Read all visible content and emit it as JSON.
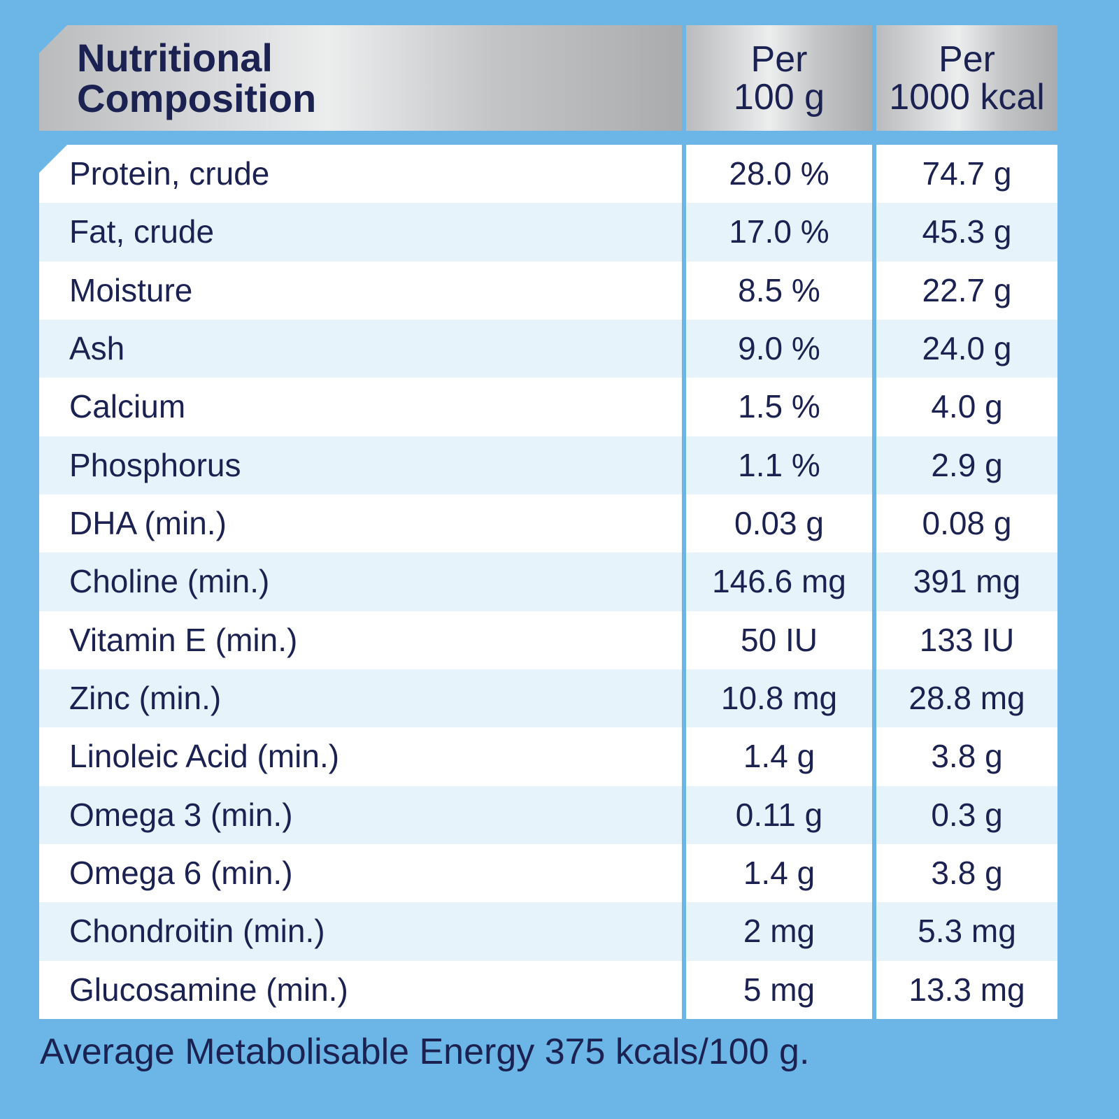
{
  "header": {
    "title_line1": "Nutritional",
    "title_line2": "Composition",
    "col2_line1": "Per",
    "col2_line2": "100 g",
    "col3_line1": "Per",
    "col3_line2": "1000 kcal"
  },
  "rows": [
    {
      "name": "Protein, crude",
      "per100g": "28.0 %",
      "per1000kcal": "74.7 g"
    },
    {
      "name": "Fat, crude",
      "per100g": "17.0 %",
      "per1000kcal": "45.3 g"
    },
    {
      "name": "Moisture",
      "per100g": "8.5 %",
      "per1000kcal": "22.7 g"
    },
    {
      "name": "Ash",
      "per100g": "9.0 %",
      "per1000kcal": "24.0 g"
    },
    {
      "name": "Calcium",
      "per100g": "1.5 %",
      "per1000kcal": "4.0 g"
    },
    {
      "name": "Phosphorus",
      "per100g": "1.1 %",
      "per1000kcal": "2.9 g"
    },
    {
      "name": "DHA (min.)",
      "per100g": "0.03 g",
      "per1000kcal": "0.08 g"
    },
    {
      "name": "Choline (min.)",
      "per100g": "146.6 mg",
      "per1000kcal": "391 mg"
    },
    {
      "name": "Vitamin E (min.)",
      "per100g": "50 IU",
      "per1000kcal": "133 IU"
    },
    {
      "name": "Zinc (min.)",
      "per100g": "10.8 mg",
      "per1000kcal": "28.8 mg"
    },
    {
      "name": "Linoleic Acid (min.)",
      "per100g": "1.4 g",
      "per1000kcal": "3.8 g"
    },
    {
      "name": "Omega 3 (min.)",
      "per100g": "0.11 g",
      "per1000kcal": "0.3 g"
    },
    {
      "name": "Omega 6 (min.)",
      "per100g": "1.4 g",
      "per1000kcal": "3.8 g"
    },
    {
      "name": "Chondroitin (min.)",
      "per100g": "2 mg",
      "per1000kcal": "5.3 mg"
    },
    {
      "name": "Glucosamine (min.)",
      "per100g": "5 mg",
      "per1000kcal": "13.3 mg"
    }
  ],
  "footer": "Average Metabolisable Energy 375 kcals/100 g.",
  "colors": {
    "background": "#6bb6e6",
    "text": "#1b2150",
    "row_alt": "#e6f3fb"
  }
}
